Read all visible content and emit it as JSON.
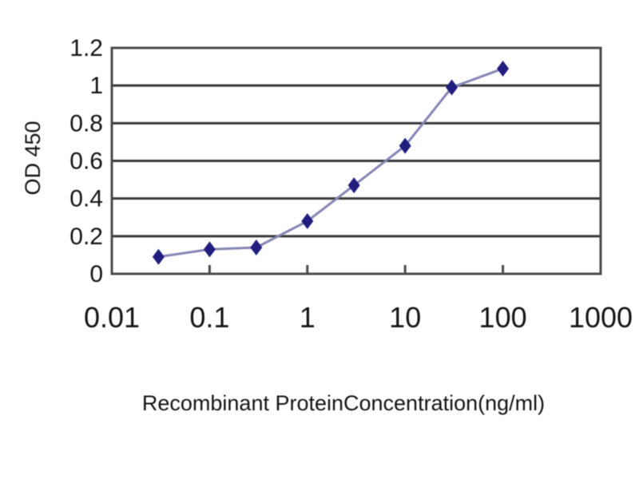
{
  "page": {
    "background_color": "#ffffff"
  },
  "chart_data": {
    "type": "line",
    "title": "",
    "xlabel": "Recombinant ProteinConcentration(ng/ml)",
    "ylabel": "OD 450",
    "x_scale": "log",
    "xlim": [
      0.01,
      1000
    ],
    "ylim": [
      0,
      1.2
    ],
    "grid": "horizontal",
    "legend": "none",
    "marker": "diamond",
    "x": [
      0.03,
      0.1,
      0.3,
      1,
      3,
      10,
      30,
      100
    ],
    "y": [
      0.09,
      0.13,
      0.14,
      0.28,
      0.47,
      0.68,
      0.99,
      1.09
    ],
    "x_ticks": {
      "values": [
        0.01,
        0.1,
        1,
        10,
        100,
        1000
      ],
      "labels": [
        "0.01",
        "0.1",
        "1",
        "10",
        "100",
        "1000"
      ]
    },
    "y_ticks": {
      "values": [
        0,
        0.2,
        0.4,
        0.6,
        0.8,
        1,
        1.2
      ],
      "labels": [
        "0",
        "0.2",
        "0.4",
        "0.6",
        "0.8",
        "1",
        "1.2"
      ]
    },
    "colors": {
      "marker": "#201d7e",
      "line": "#8585b5",
      "grid": "#383838",
      "frame": "#4a4a4a",
      "text": "#141414"
    }
  }
}
